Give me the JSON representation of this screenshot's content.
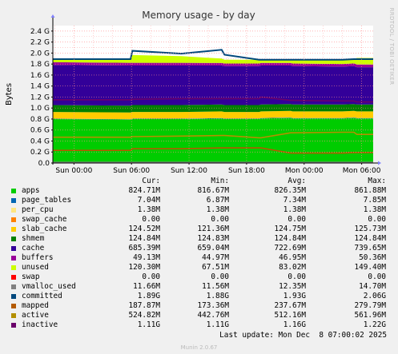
{
  "chart_data": {
    "type": "area",
    "title": "Memory usage - by day",
    "ylabel": "Bytes",
    "side_label": "RRDTOOL / TOBI OETIKER",
    "ylim": [
      0,
      2.5
    ],
    "y_unit": "G",
    "y_ticks": [
      "0.0",
      "0.2 G",
      "0.4 G",
      "0.6 G",
      "0.8 G",
      "1.0 G",
      "1.2 G",
      "1.4 G",
      "1.6 G",
      "1.8 G",
      "2.0 G",
      "2.2 G",
      "2.4 G"
    ],
    "y_tick_values": [
      0,
      0.2,
      0.4,
      0.6,
      0.8,
      1.0,
      1.2,
      1.4,
      1.6,
      1.8,
      2.0,
      2.2,
      2.4
    ],
    "x_ticks": [
      {
        "label": "Sun 00:00",
        "hour": 0
      },
      {
        "label": "Sun 06:00",
        "hour": 6
      },
      {
        "label": "Sun 12:00",
        "hour": 12
      },
      {
        "label": "Sun 18:00",
        "hour": 18
      },
      {
        "label": "Mon 00:00",
        "hour": 24
      },
      {
        "label": "Mon 06:00",
        "hour": 30
      }
    ],
    "x_range_hours": [
      -2.2,
      31.2
    ],
    "grid": true,
    "stack_order": [
      "apps",
      "page_tables",
      "per_cpu",
      "swap_cache",
      "slab_cache",
      "shmem",
      "cache",
      "buffers",
      "unused",
      "swap"
    ],
    "line_series": [
      "vmalloc_used",
      "committed",
      "mapped",
      "active",
      "inactive"
    ],
    "sample_hours": [
      -2.2,
      5.9,
      6.1,
      11.2,
      15.4,
      15.7,
      19.3,
      19.5,
      22.6,
      22.8,
      28,
      29.2,
      29.5,
      31.2
    ],
    "series": [
      {
        "key": "apps",
        "name": "apps",
        "color": "#00cc00",
        "values": [
          0.8,
          0.79,
          0.8,
          0.8,
          0.81,
          0.8,
          0.8,
          0.81,
          0.82,
          0.81,
          0.81,
          0.82,
          0.81,
          0.81
        ]
      },
      {
        "key": "page_tables",
        "name": "page_tables",
        "color": "#0066b3",
        "values": [
          0.007,
          0.007,
          0.007,
          0.007,
          0.007,
          0.007,
          0.007,
          0.007,
          0.007,
          0.007,
          0.007,
          0.007,
          0.007,
          0.007
        ]
      },
      {
        "key": "per_cpu",
        "name": "per_cpu",
        "color": "#ffcc00",
        "values": [
          0.0014,
          0.0014,
          0.0014,
          0.0014,
          0.0014,
          0.0014,
          0.0014,
          0.0014,
          0.0014,
          0.0014,
          0.0014,
          0.0014,
          0.0014,
          0.0014
        ]
      },
      {
        "key": "swap_cache",
        "name": "swap_cache",
        "color": "#ff8000",
        "values": [
          0,
          0,
          0,
          0,
          0,
          0,
          0,
          0,
          0,
          0,
          0,
          0,
          0,
          0
        ]
      },
      {
        "key": "slab_cache",
        "name": "slab_cache",
        "color": "#ffcc00",
        "values": [
          0.12,
          0.12,
          0.12,
          0.12,
          0.12,
          0.12,
          0.12,
          0.12,
          0.12,
          0.12,
          0.12,
          0.12,
          0.12,
          0.12
        ]
      },
      {
        "key": "shmem",
        "name": "shmem",
        "color": "#008000",
        "values": [
          0.125,
          0.125,
          0.125,
          0.125,
          0.125,
          0.125,
          0.125,
          0.125,
          0.125,
          0.125,
          0.125,
          0.125,
          0.125,
          0.125
        ]
      },
      {
        "key": "cache",
        "name": "cache",
        "color": "#330099",
        "values": [
          0.73,
          0.73,
          0.72,
          0.72,
          0.71,
          0.71,
          0.71,
          0.71,
          0.7,
          0.7,
          0.69,
          0.69,
          0.68,
          0.68
        ]
      },
      {
        "key": "buffers",
        "name": "buffers",
        "color": "#990099",
        "values": [
          0.05,
          0.05,
          0.05,
          0.05,
          0.046,
          0.046,
          0.046,
          0.046,
          0.046,
          0.046,
          0.047,
          0.047,
          0.048,
          0.048
        ]
      },
      {
        "key": "unused",
        "name": "unused",
        "color": "#ccff00",
        "values": [
          0.06,
          0.07,
          0.14,
          0.12,
          0.08,
          0.07,
          0.07,
          0.07,
          0.07,
          0.07,
          0.07,
          0.07,
          0.12,
          0.12
        ]
      },
      {
        "key": "swap",
        "name": "swap",
        "color": "#ff0000",
        "values": [
          0,
          0,
          0,
          0,
          0,
          0,
          0,
          0,
          0,
          0,
          0,
          0,
          0,
          0
        ]
      },
      {
        "key": "vmalloc_used",
        "name": "vmalloc_used",
        "color": "#808080",
        "values": [
          0.012,
          0.012,
          0.012,
          0.012,
          0.012,
          0.012,
          0.012,
          0.012,
          0.012,
          0.012,
          0.012,
          0.012,
          0.012,
          0.012
        ]
      },
      {
        "key": "committed",
        "name": "committed",
        "color": "#00487d",
        "values": [
          1.89,
          1.89,
          2.04,
          1.99,
          2.06,
          1.97,
          1.88,
          1.88,
          1.88,
          1.88,
          1.88,
          1.89,
          1.89,
          1.89
        ]
      },
      {
        "key": "mapped",
        "name": "mapped",
        "color": "#b35a00",
        "values": [
          0.23,
          0.23,
          0.26,
          0.26,
          0.275,
          0.275,
          0.275,
          0.275,
          0.18,
          0.18,
          0.18,
          0.19,
          0.19,
          0.19
        ]
      },
      {
        "key": "active",
        "name": "active",
        "color": "#b38f00",
        "values": [
          0.47,
          0.47,
          0.48,
          0.49,
          0.5,
          0.5,
          0.46,
          0.46,
          0.55,
          0.55,
          0.56,
          0.56,
          0.52,
          0.52
        ]
      },
      {
        "key": "inactive",
        "name": "inactive",
        "color": "#6b006b",
        "values": [
          1.15,
          1.15,
          1.16,
          1.17,
          1.17,
          1.17,
          1.17,
          1.2,
          1.14,
          1.14,
          1.13,
          1.13,
          1.11,
          1.11
        ]
      }
    ]
  },
  "legend": {
    "headers": {
      "cur": "Cur:",
      "min": "Min:",
      "avg": "Avg:",
      "max": "Max:"
    },
    "rows": [
      {
        "name": "apps",
        "color": "#00cc00",
        "cur": "824.71M",
        "min": "816.67M",
        "avg": "826.35M",
        "max": "861.88M"
      },
      {
        "name": "page_tables",
        "color": "#0066b3",
        "cur": "7.04M",
        "min": "6.87M",
        "avg": "7.34M",
        "max": "7.85M"
      },
      {
        "name": "per_cpu",
        "color": "#ffe680",
        "cur": "1.38M",
        "min": "1.38M",
        "avg": "1.38M",
        "max": "1.38M"
      },
      {
        "name": "swap_cache",
        "color": "#ff8000",
        "cur": "0.00",
        "min": "0.00",
        "avg": "0.00",
        "max": "0.00"
      },
      {
        "name": "slab_cache",
        "color": "#ffcc00",
        "cur": "124.52M",
        "min": "121.36M",
        "avg": "124.75M",
        "max": "125.73M"
      },
      {
        "name": "shmem",
        "color": "#008000",
        "cur": "124.84M",
        "min": "124.83M",
        "avg": "124.84M",
        "max": "124.84M"
      },
      {
        "name": "cache",
        "color": "#330099",
        "cur": "685.39M",
        "min": "659.04M",
        "avg": "722.69M",
        "max": "739.65M"
      },
      {
        "name": "buffers",
        "color": "#990099",
        "cur": "49.13M",
        "min": "44.97M",
        "avg": "46.95M",
        "max": "50.36M"
      },
      {
        "name": "unused",
        "color": "#ccff00",
        "cur": "120.30M",
        "min": "67.51M",
        "avg": "83.02M",
        "max": "149.40M"
      },
      {
        "name": "swap",
        "color": "#ff0000",
        "cur": "0.00",
        "min": "0.00",
        "avg": "0.00",
        "max": "0.00"
      },
      {
        "name": "vmalloc_used",
        "color": "#808080",
        "cur": "11.66M",
        "min": "11.56M",
        "avg": "12.35M",
        "max": "14.70M"
      },
      {
        "name": "committed",
        "color": "#00487d",
        "cur": "1.89G",
        "min": "1.88G",
        "avg": "1.93G",
        "max": "2.06G"
      },
      {
        "name": "mapped",
        "color": "#b35a00",
        "cur": "187.87M",
        "min": "173.36M",
        "avg": "237.67M",
        "max": "279.79M"
      },
      {
        "name": "active",
        "color": "#b38f00",
        "cur": "524.82M",
        "min": "442.76M",
        "avg": "512.16M",
        "max": "561.96M"
      },
      {
        "name": "inactive",
        "color": "#6b006b",
        "cur": "1.11G",
        "min": "1.11G",
        "avg": "1.16G",
        "max": "1.22G"
      }
    ]
  },
  "last_update": "Last update: Mon Dec  8 07:00:02 2025",
  "munin_version": "Munin 2.0.67"
}
